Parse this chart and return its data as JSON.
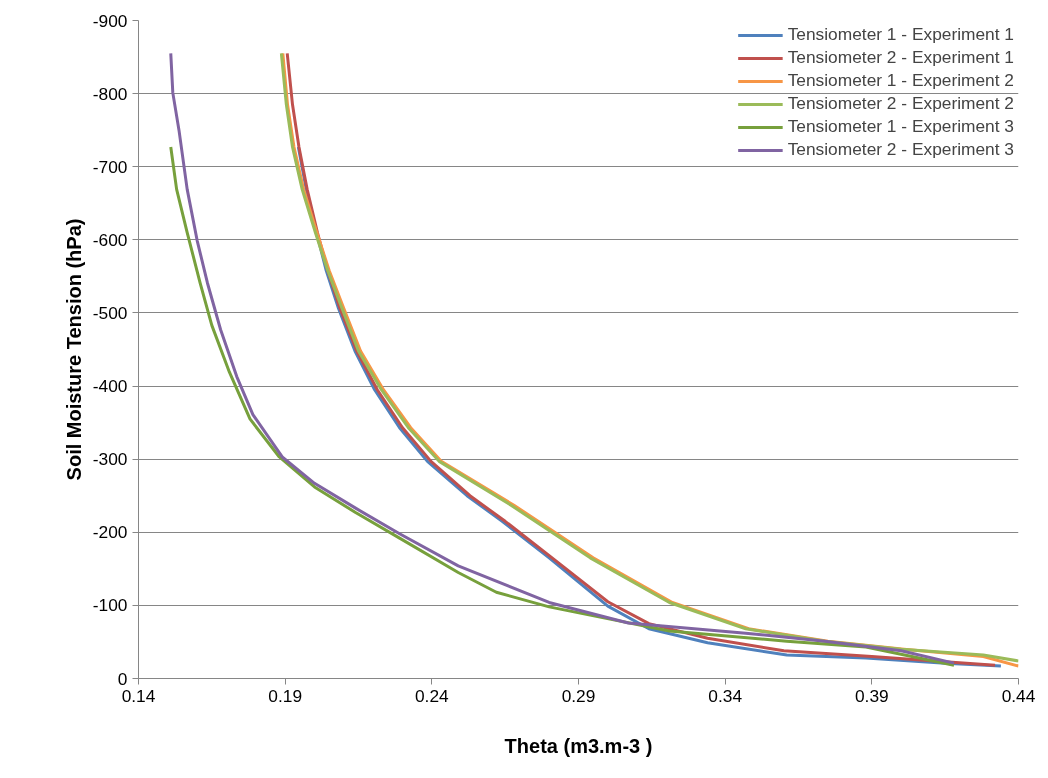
{
  "chart_data": {
    "type": "line",
    "xlabel": "Theta (m3.m-3 )",
    "ylabel": "Soil Moisture Tension (hPa)",
    "xlim": [
      0.14,
      0.44
    ],
    "ylim": [
      0,
      -900
    ],
    "xticks": [
      0.14,
      0.19,
      0.24,
      0.29,
      0.34,
      0.39,
      0.44
    ],
    "yticks": [
      0,
      -100,
      -200,
      -300,
      -400,
      -500,
      -600,
      -700,
      -800,
      -900
    ],
    "grid": "y",
    "legend": "top right",
    "marker": "none",
    "line_style": "solid",
    "series": [
      {
        "name": "Tensiometer 1 - Experiment 1",
        "color": "#4f81bd",
        "x": [
          0.1945,
          0.1972,
          0.2007,
          0.204,
          0.2082,
          0.2138,
          0.2205,
          0.229,
          0.2385,
          0.252,
          0.264,
          0.28,
          0.3,
          0.314,
          0.334,
          0.361,
          0.388,
          0.415,
          0.434
        ],
        "values": [
          -727,
          -669,
          -610,
          -558,
          -506,
          -448,
          -395,
          -343,
          -297,
          -250,
          -215,
          -165,
          -99,
          -68,
          -49,
          -32,
          -28,
          -21,
          -17
        ]
      },
      {
        "name": "Tensiometer 2 - Experiment 1",
        "color": "#c0504d",
        "x": [
          0.1907,
          0.1925,
          0.1947,
          0.1975,
          0.201,
          0.2045,
          0.2087,
          0.2144,
          0.2214,
          0.23,
          0.2397,
          0.253,
          0.265,
          0.281,
          0.3,
          0.314,
          0.334,
          0.36,
          0.39,
          0.415,
          0.432
        ],
        "values": [
          -855,
          -785,
          -727,
          -669,
          -610,
          -558,
          -506,
          -448,
          -395,
          -343,
          -297,
          -250,
          -215,
          -165,
          -105,
          -75,
          -55,
          -38,
          -30,
          -23,
          -18
        ]
      },
      {
        "name": "Tensiometer 1 - Experiment 2",
        "color": "#f79646",
        "x": [
          0.1892,
          0.1908,
          0.193,
          0.1963,
          0.2008,
          0.205,
          0.21,
          0.2157,
          0.2235,
          0.2328,
          0.2432,
          0.268,
          0.295,
          0.322,
          0.348,
          0.375,
          0.401,
          0.428,
          0.44
        ],
        "values": [
          -855,
          -785,
          -727,
          -669,
          -610,
          -558,
          -506,
          -448,
          -395,
          -343,
          -297,
          -237,
          -165,
          -104,
          -68,
          -51,
          -40,
          -30,
          -17
        ]
      },
      {
        "name": "Tensiometer 2 - Experiment 2",
        "color": "#9bbb59",
        "x": [
          0.1887,
          0.1904,
          0.1925,
          0.1958,
          0.2003,
          0.2045,
          0.2094,
          0.215,
          0.2228,
          0.232,
          0.2425,
          0.267,
          0.294,
          0.321,
          0.347,
          0.374,
          0.4,
          0.428,
          0.44
        ],
        "values": [
          -855,
          -785,
          -727,
          -669,
          -610,
          -558,
          -506,
          -448,
          -395,
          -343,
          -297,
          -237,
          -165,
          -104,
          -68,
          -51,
          -40,
          -32,
          -24
        ]
      },
      {
        "name": "Tensiometer 1 - Experiment 3",
        "color": "#77a03c",
        "x": [
          0.151,
          0.153,
          0.1566,
          0.161,
          0.165,
          0.171,
          0.178,
          0.188,
          0.2,
          0.214,
          0.229,
          0.249,
          0.262,
          0.28,
          0.321,
          0.361,
          0.388,
          0.418
        ],
        "values": [
          -727,
          -669,
          -610,
          -541,
          -483,
          -419,
          -355,
          -303,
          -262,
          -227,
          -192,
          -145,
          -118,
          -98,
          -65,
          -51,
          -43,
          -18
        ]
      },
      {
        "name": "Tensiometer 2 - Experiment 3",
        "color": "#8064a2",
        "x": [
          0.151,
          0.1517,
          0.1538,
          0.1566,
          0.16,
          0.1635,
          0.168,
          0.1735,
          0.179,
          0.189,
          0.2,
          0.214,
          0.229,
          0.249,
          0.28,
          0.307,
          0.347,
          0.374,
          0.4,
          0.418
        ],
        "values": [
          -855,
          -801,
          -750,
          -669,
          -599,
          -541,
          -477,
          -413,
          -361,
          -303,
          -267,
          -233,
          -198,
          -154,
          -104,
          -76,
          -62,
          -51,
          -38,
          -21
        ]
      }
    ]
  }
}
